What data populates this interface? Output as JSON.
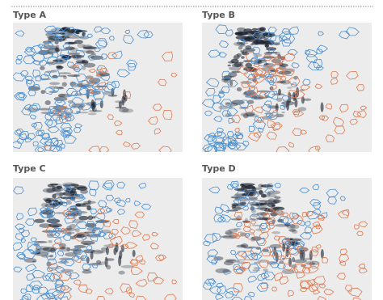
{
  "panels": [
    {
      "label": "Type A"
    },
    {
      "label": "Type B"
    },
    {
      "label": "Type C"
    },
    {
      "label": "Type D"
    }
  ]
}
